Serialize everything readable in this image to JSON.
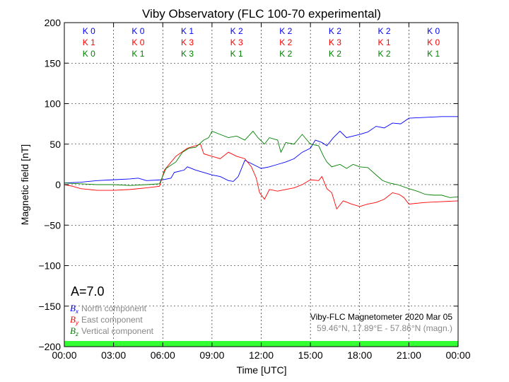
{
  "chart_data": {
    "type": "line",
    "title": "Viby Observatory (FLC 100-70 experimental)",
    "xlabel": "Time [UTC]",
    "ylabel": "Magnetic field [nT]",
    "xlim": [
      0,
      24
    ],
    "ylim": [
      -200,
      200
    ],
    "xticks": [
      "00:00",
      "03:00",
      "06:00",
      "09:00",
      "12:00",
      "15:00",
      "18:00",
      "21:00",
      "00:00"
    ],
    "yticks": [
      "200",
      "150",
      "100",
      "50",
      "0",
      "−50",
      "−100",
      "−150",
      "−200"
    ],
    "grid": true,
    "k_indices": {
      "north": [
        "K 0",
        "K 0",
        "K 1",
        "K 2",
        "K 2",
        "K 2",
        "K 2",
        "K 0"
      ],
      "east": [
        "K 1",
        "K 0",
        "K 3",
        "K 3",
        "K 2",
        "K 3",
        "K 1",
        "K 0"
      ],
      "vertical": [
        "K 0",
        "K 1",
        "K 3",
        "K 1",
        "K 2",
        "K 2",
        "K 2",
        "K 1"
      ]
    },
    "a_index": "A=7.0",
    "legend": {
      "placement": "bottom-left",
      "entries": [
        {
          "sym": "B",
          "sub": "x",
          "label": "North component",
          "color": "#0000ff"
        },
        {
          "sym": "B",
          "sub": "y",
          "label": "East component",
          "color": "#ff0000"
        },
        {
          "sym": "B",
          "sub": "z",
          "label": "Vertical component",
          "color": "#008000"
        }
      ]
    },
    "info_line1": "Viby-FLC Magnetometer 2020 Mar 05",
    "info_line2": "59.46°N, 17.89°E - 57.86°N (magn.)",
    "status_bar_color": "#33ff33",
    "series": [
      {
        "name": "North",
        "color": "#0000ff",
        "points": [
          [
            0,
            2
          ],
          [
            1,
            3
          ],
          [
            2,
            5
          ],
          [
            3,
            6
          ],
          [
            4,
            7
          ],
          [
            4.5,
            8
          ],
          [
            5,
            5
          ],
          [
            6,
            6
          ],
          [
            6.5,
            8
          ],
          [
            6.7,
            15
          ],
          [
            7.3,
            18
          ],
          [
            7.5,
            22
          ],
          [
            8,
            18
          ],
          [
            8.5,
            15
          ],
          [
            9,
            12
          ],
          [
            9.5,
            10
          ],
          [
            10,
            5
          ],
          [
            10.3,
            4
          ],
          [
            10.6,
            10
          ],
          [
            11,
            30
          ],
          [
            11.5,
            25
          ],
          [
            12,
            20
          ],
          [
            12.5,
            22
          ],
          [
            13,
            25
          ],
          [
            13.5,
            28
          ],
          [
            14,
            32
          ],
          [
            14.5,
            40
          ],
          [
            15,
            45
          ],
          [
            15.3,
            55
          ],
          [
            15.7,
            52
          ],
          [
            16,
            48
          ],
          [
            16.4,
            58
          ],
          [
            16.8,
            66
          ],
          [
            17.2,
            58
          ],
          [
            17.6,
            60
          ],
          [
            18,
            62
          ],
          [
            18.5,
            65
          ],
          [
            19,
            72
          ],
          [
            19.5,
            70
          ],
          [
            20,
            76
          ],
          [
            20.5,
            75
          ],
          [
            21,
            82
          ],
          [
            22,
            83
          ],
          [
            23,
            84
          ],
          [
            24,
            84
          ]
        ]
      },
      {
        "name": "East",
        "color": "#ff0000",
        "points": [
          [
            0,
            0
          ],
          [
            0.5,
            -2
          ],
          [
            1,
            -5
          ],
          [
            2,
            -7
          ],
          [
            3,
            -7
          ],
          [
            4,
            -6
          ],
          [
            5,
            -4
          ],
          [
            5.8,
            -2
          ],
          [
            6.1,
            18
          ],
          [
            6.8,
            35
          ],
          [
            7.5,
            45
          ],
          [
            8,
            48
          ],
          [
            8.3,
            50
          ],
          [
            8.5,
            38
          ],
          [
            9,
            35
          ],
          [
            9.5,
            32
          ],
          [
            10,
            40
          ],
          [
            10.5,
            35
          ],
          [
            11,
            32
          ],
          [
            11.4,
            22
          ],
          [
            11.7,
            8
          ],
          [
            11.9,
            -10
          ],
          [
            12.2,
            -18
          ],
          [
            12.5,
            -6
          ],
          [
            13,
            -8
          ],
          [
            13.5,
            -6
          ],
          [
            14,
            -4
          ],
          [
            14.5,
            0
          ],
          [
            15,
            6
          ],
          [
            15.5,
            5
          ],
          [
            15.7,
            10
          ],
          [
            16,
            -5
          ],
          [
            16.3,
            -10
          ],
          [
            16.6,
            -30
          ],
          [
            17,
            -20
          ],
          [
            17.5,
            -24
          ],
          [
            18,
            -27
          ],
          [
            18.5,
            -24
          ],
          [
            19,
            -22
          ],
          [
            19.5,
            -18
          ],
          [
            20,
            -10
          ],
          [
            20.4,
            -12
          ],
          [
            20.7,
            -16
          ],
          [
            21,
            -24
          ],
          [
            22,
            -22
          ],
          [
            23,
            -21
          ],
          [
            24,
            -20
          ]
        ]
      },
      {
        "name": "Vertical",
        "color": "#008000",
        "points": [
          [
            0,
            2
          ],
          [
            1,
            1
          ],
          [
            2,
            0
          ],
          [
            3,
            0
          ],
          [
            4,
            -1
          ],
          [
            5,
            0
          ],
          [
            5.8,
            1
          ],
          [
            6.2,
            20
          ],
          [
            6.8,
            28
          ],
          [
            7.2,
            40
          ],
          [
            7.6,
            45
          ],
          [
            8,
            46
          ],
          [
            8.5,
            55
          ],
          [
            8.8,
            58
          ],
          [
            9,
            66
          ],
          [
            9.5,
            62
          ],
          [
            10,
            58
          ],
          [
            10.5,
            60
          ],
          [
            11,
            55
          ],
          [
            11.5,
            66
          ],
          [
            11.8,
            58
          ],
          [
            12.2,
            50
          ],
          [
            12.5,
            58
          ],
          [
            13,
            55
          ],
          [
            13.2,
            40
          ],
          [
            13.5,
            52
          ],
          [
            14,
            50
          ],
          [
            14.5,
            62
          ],
          [
            15,
            50
          ],
          [
            15.5,
            48
          ],
          [
            15.8,
            35
          ],
          [
            16,
            28
          ],
          [
            16.3,
            22
          ],
          [
            16.8,
            25
          ],
          [
            17.2,
            20
          ],
          [
            17.6,
            25
          ],
          [
            18,
            22
          ],
          [
            18.5,
            21
          ],
          [
            19,
            12
          ],
          [
            19.4,
            5
          ],
          [
            19.8,
            2
          ],
          [
            20.3,
            0
          ],
          [
            21,
            -5
          ],
          [
            21.5,
            -8
          ],
          [
            22,
            -12
          ],
          [
            22.5,
            -13
          ],
          [
            23,
            -13
          ],
          [
            23.5,
            -16
          ],
          [
            24,
            -15
          ]
        ]
      }
    ]
  }
}
